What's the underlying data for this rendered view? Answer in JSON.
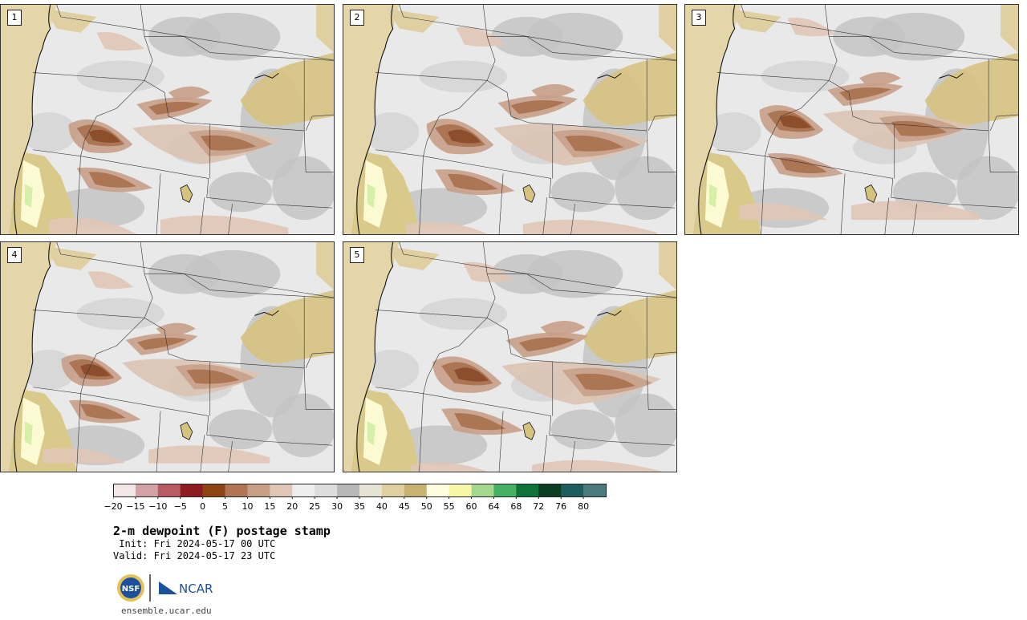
{
  "title": "2-m dewpoint (F) postage stamp",
  "init": " Init: Fri 2024-05-17 00 UTC",
  "valid": "Valid: Fri 2024-05-17 23 UTC",
  "footer_url": "ensemble.ucar.edu",
  "logos": {
    "left": "NSF",
    "right": "NCAR"
  },
  "panels": [
    {
      "label": "1"
    },
    {
      "label": "2"
    },
    {
      "label": "3"
    },
    {
      "label": "4"
    },
    {
      "label": "5"
    }
  ],
  "colorbar": {
    "ticks": [
      "-20",
      "-15",
      "-10",
      "-5",
      "0",
      "5",
      "10",
      "15",
      "20",
      "25",
      "30",
      "35",
      "40",
      "45",
      "50",
      "55",
      "60",
      "64",
      "68",
      "72",
      "76",
      "80"
    ],
    "colors": [
      "#f3e6e6",
      "#d4a2a4",
      "#b65c62",
      "#8e1a22",
      "#8c4414",
      "#b07554",
      "#c79f85",
      "#e0c6b6",
      "#eeeeee",
      "#dddddd",
      "#b8b8b8",
      "#e6e2d4",
      "#e0cfa1",
      "#c8b272",
      "#fffde0",
      "#f7f7a8",
      "#a3d88e",
      "#46b063",
      "#0e7239",
      "#0d3e24",
      "#1d5d5d",
      "#4b7a7c"
    ]
  }
}
